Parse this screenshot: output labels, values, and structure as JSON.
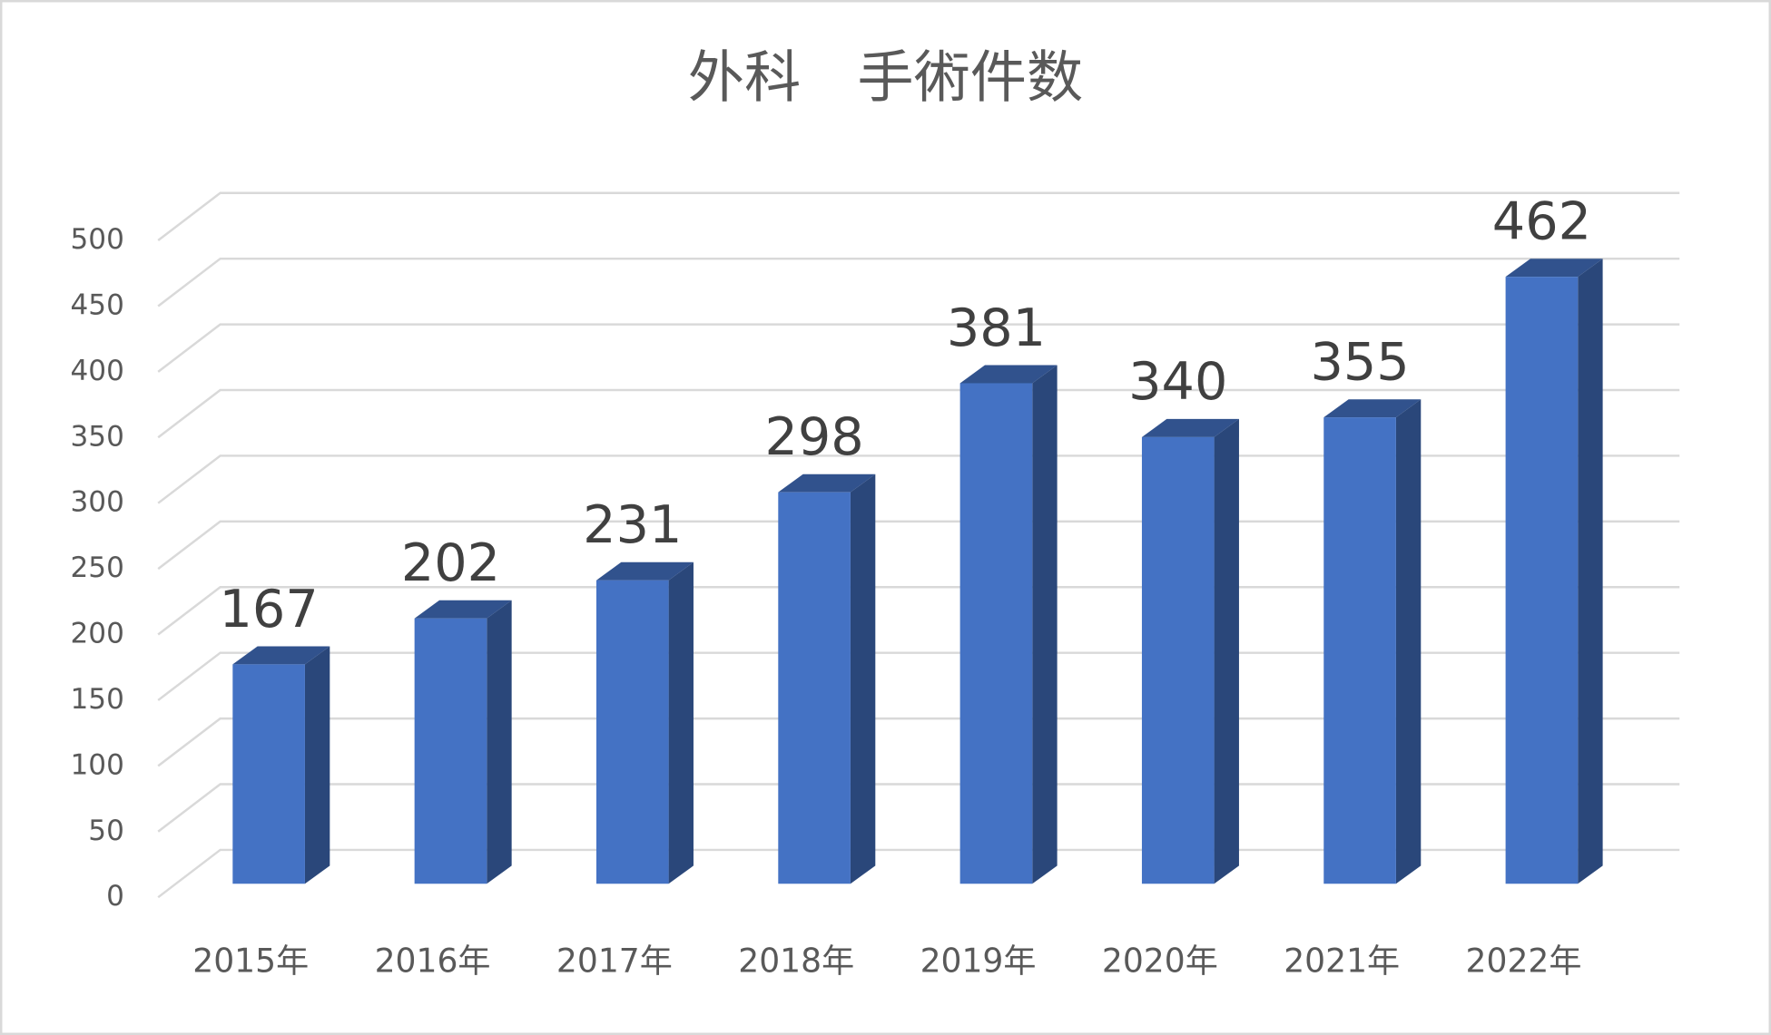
{
  "chart_data": {
    "type": "bar3d",
    "title": "外科　手術件数",
    "categories": [
      "2015年",
      "2016年",
      "2017年",
      "2018年",
      "2019年",
      "2020年",
      "2021年",
      "2022年"
    ],
    "values": [
      167,
      202,
      231,
      298,
      381,
      340,
      355,
      462
    ],
    "color": "#4472c4",
    "ylim": [
      0,
      500
    ],
    "yticks": [
      0,
      50,
      100,
      150,
      200,
      250,
      300,
      350,
      400,
      450,
      500
    ],
    "grid": true
  }
}
